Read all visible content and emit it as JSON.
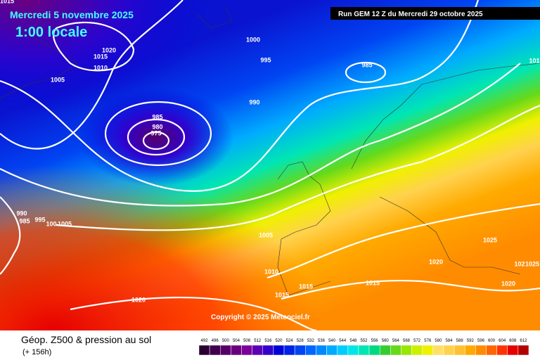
{
  "header": {
    "date": "Mercredi 5 novembre 2025",
    "time": "1:00 locale",
    "run": "Run GEM 12 Z du Mercredi 29 octobre 2025"
  },
  "copyright": "Copyright © 2025 Meteociel.fr",
  "footer": {
    "title": "Géop. Z500 & pression au sol",
    "lead": "(+ 156h)"
  },
  "isobar_labels": [
    "1015",
    "1020",
    "1015",
    "1010",
    "1005",
    "1000",
    "995",
    "985",
    "990",
    "985",
    "980",
    "975",
    "990",
    "985",
    "995",
    "100",
    "1005",
    "1005",
    "1010",
    "1015",
    "1015",
    "1015",
    "1020",
    "1025",
    "1020",
    "102",
    "1025",
    "101",
    "1020"
  ],
  "scale": [
    {
      "label": "492",
      "color": "#2a0033"
    },
    {
      "label": "496",
      "color": "#40004d"
    },
    {
      "label": "500",
      "color": "#560066"
    },
    {
      "label": "504",
      "color": "#6b007f"
    },
    {
      "label": "508",
      "color": "#7a0099"
    },
    {
      "label": "512",
      "color": "#5c00b3"
    },
    {
      "label": "516",
      "color": "#3300cc"
    },
    {
      "label": "520",
      "color": "#0000d9"
    },
    {
      "label": "524",
      "color": "#0022e6"
    },
    {
      "label": "528",
      "color": "#0044f2"
    },
    {
      "label": "532",
      "color": "#0066ff"
    },
    {
      "label": "536",
      "color": "#0088ff"
    },
    {
      "label": "540",
      "color": "#00aaff"
    },
    {
      "label": "544",
      "color": "#00ccff"
    },
    {
      "label": "548",
      "color": "#00e6e6"
    },
    {
      "label": "552",
      "color": "#00e6b3"
    },
    {
      "label": "556",
      "color": "#00d980"
    },
    {
      "label": "560",
      "color": "#33cc33"
    },
    {
      "label": "564",
      "color": "#66d91a"
    },
    {
      "label": "568",
      "color": "#99e600"
    },
    {
      "label": "572",
      "color": "#ccf000"
    },
    {
      "label": "576",
      "color": "#f0f000"
    },
    {
      "label": "580",
      "color": "#ffe066"
    },
    {
      "label": "584",
      "color": "#ffd24d"
    },
    {
      "label": "588",
      "color": "#ffc133"
    },
    {
      "label": "592",
      "color": "#ffaa00"
    },
    {
      "label": "596",
      "color": "#ff8c00"
    },
    {
      "label": "600",
      "color": "#ff6600"
    },
    {
      "label": "604",
      "color": "#ff3300"
    },
    {
      "label": "608",
      "color": "#e60000"
    },
    {
      "label": "612",
      "color": "#b30000"
    }
  ]
}
